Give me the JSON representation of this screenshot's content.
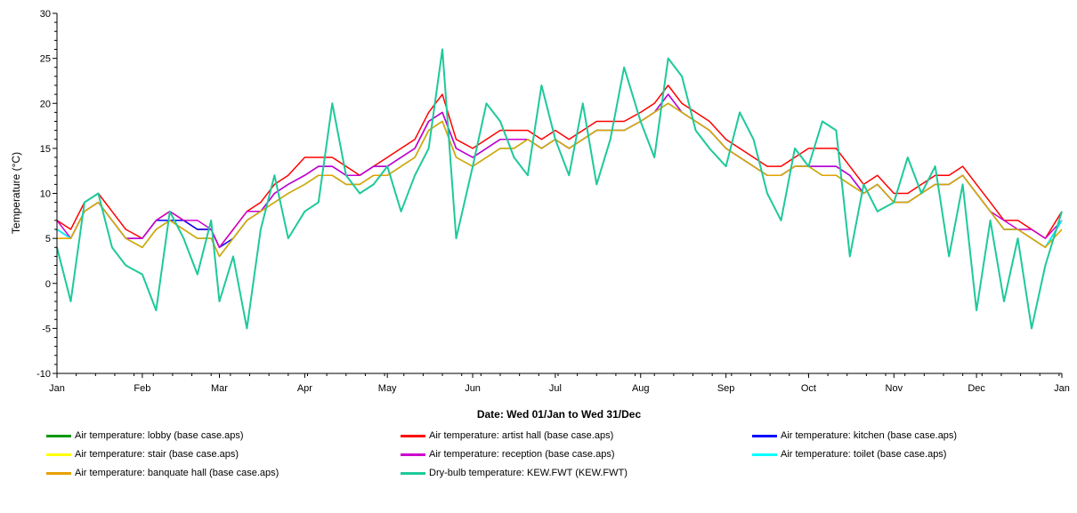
{
  "chart_data": {
    "type": "line",
    "title": "",
    "ylabel": "Temperature (°C)",
    "xlabel": "Date: Wed 01/Jan to Wed 31/Dec",
    "ylim": [
      -10,
      30
    ],
    "y_ticks": [
      -10,
      -5,
      0,
      5,
      10,
      15,
      20,
      25,
      30
    ],
    "x_range_days": [
      0,
      365
    ],
    "x_tick_days": [
      0,
      31,
      59,
      90,
      120,
      151,
      181,
      212,
      243,
      273,
      304,
      334,
      365
    ],
    "x_ticks": [
      "Jan",
      "Feb",
      "Mar",
      "Apr",
      "May",
      "Jun",
      "Jul",
      "Aug",
      "Sep",
      "Oct",
      "Nov",
      "Dec",
      "Jan"
    ],
    "grid": false,
    "legend_position": "bottom",
    "x_day_samples": [
      0,
      5,
      10,
      15,
      20,
      25,
      31,
      36,
      41,
      46,
      51,
      56,
      59,
      64,
      69,
      74,
      79,
      84,
      90,
      95,
      100,
      105,
      110,
      115,
      120,
      125,
      130,
      135,
      140,
      145,
      151,
      156,
      161,
      166,
      171,
      176,
      181,
      186,
      191,
      196,
      201,
      206,
      212,
      217,
      222,
      227,
      232,
      237,
      243,
      248,
      253,
      258,
      263,
      268,
      273,
      278,
      283,
      288,
      293,
      298,
      304,
      309,
      314,
      319,
      324,
      329,
      334,
      339,
      344,
      349,
      354,
      359,
      365
    ],
    "series": [
      {
        "name": "Air temperature: lobby  (base case.aps)",
        "color": "#009900",
        "values": [
          6,
          5,
          8,
          9,
          7,
          5,
          4,
          6,
          7,
          6,
          5,
          5,
          3,
          5,
          7,
          8,
          9,
          10,
          11,
          12,
          12,
          11,
          11,
          12,
          12,
          13,
          14,
          17,
          18,
          14,
          13,
          14,
          15,
          15,
          16,
          15,
          16,
          15,
          16,
          17,
          17,
          17,
          18,
          19,
          20,
          19,
          18,
          17,
          15,
          14,
          13,
          12,
          12,
          13,
          13,
          12,
          12,
          11,
          10,
          11,
          9,
          9,
          10,
          11,
          11,
          12,
          10,
          8,
          6,
          6,
          5,
          4,
          7
        ]
      },
      {
        "name": "Air temperature:  artist  hall  (base case.aps)",
        "color": "#ff0000",
        "values": [
          7,
          6,
          9,
          10,
          8,
          6,
          5,
          7,
          8,
          7,
          6,
          6,
          4,
          6,
          8,
          9,
          11,
          12,
          14,
          14,
          14,
          13,
          12,
          13,
          14,
          15,
          16,
          19,
          21,
          16,
          15,
          16,
          17,
          17,
          17,
          16,
          17,
          16,
          17,
          18,
          18,
          18,
          19,
          20,
          22,
          20,
          19,
          18,
          16,
          15,
          14,
          13,
          13,
          14,
          15,
          15,
          15,
          13,
          11,
          12,
          10,
          10,
          11,
          12,
          12,
          13,
          11,
          9,
          7,
          7,
          6,
          5,
          8
        ]
      },
      {
        "name": "Air temperature: kitchen  (base case.aps)",
        "color": "#0000ff",
        "values": [
          6,
          5,
          8,
          9,
          7,
          5,
          5,
          7,
          7,
          7,
          6,
          6,
          4,
          5,
          7,
          8,
          10,
          11,
          12,
          13,
          13,
          12,
          12,
          13,
          13,
          14,
          15,
          18,
          19,
          15,
          14,
          15,
          16,
          16,
          16,
          15,
          16,
          15,
          16,
          17,
          17,
          17,
          18,
          19,
          21,
          19,
          18,
          17,
          15,
          14,
          13,
          12,
          12,
          13,
          13,
          13,
          13,
          12,
          10,
          11,
          9,
          9,
          10,
          11,
          11,
          12,
          10,
          8,
          6,
          6,
          5,
          4,
          7
        ]
      },
      {
        "name": "Air temperature: stair  (base case.aps)",
        "color": "#ffff00",
        "values": [
          5,
          5,
          8,
          9,
          7,
          5,
          4,
          6,
          7,
          6,
          5,
          5,
          3,
          5,
          7,
          8,
          9,
          10,
          11,
          12,
          12,
          11,
          11,
          12,
          12,
          13,
          14,
          17,
          18,
          14,
          13,
          14,
          15,
          15,
          16,
          15,
          16,
          15,
          16,
          17,
          17,
          17,
          18,
          19,
          20,
          19,
          18,
          17,
          15,
          14,
          13,
          12,
          12,
          13,
          13,
          12,
          12,
          11,
          10,
          11,
          9,
          9,
          10,
          11,
          11,
          12,
          10,
          8,
          6,
          6,
          5,
          4,
          6
        ]
      },
      {
        "name": "Air temperature: reception  (base case.aps)",
        "color": "#cc00cc",
        "values": [
          7,
          5,
          8,
          9,
          7,
          5,
          5,
          7,
          8,
          7,
          7,
          6,
          4,
          6,
          8,
          8,
          10,
          11,
          12,
          13,
          13,
          12,
          12,
          13,
          13,
          14,
          15,
          18,
          19,
          15,
          14,
          15,
          16,
          16,
          16,
          15,
          16,
          15,
          16,
          17,
          17,
          17,
          18,
          19,
          21,
          19,
          18,
          17,
          15,
          14,
          13,
          12,
          12,
          13,
          13,
          13,
          13,
          12,
          10,
          11,
          9,
          9,
          10,
          11,
          11,
          12,
          10,
          8,
          7,
          6,
          6,
          5,
          7
        ]
      },
      {
        "name": "Air temperature: toilet  (base case.aps)",
        "color": "#00ffff",
        "values": [
          6,
          5,
          8,
          9,
          7,
          5,
          4,
          6,
          7,
          6,
          5,
          5,
          3,
          5,
          7,
          8,
          9,
          10,
          11,
          12,
          12,
          11,
          11,
          12,
          12,
          13,
          14,
          17,
          18,
          14,
          13,
          14,
          15,
          15,
          16,
          15,
          16,
          15,
          16,
          17,
          17,
          17,
          18,
          19,
          20,
          19,
          18,
          17,
          15,
          14,
          13,
          12,
          12,
          13,
          13,
          12,
          12,
          11,
          10,
          11,
          9,
          9,
          10,
          11,
          11,
          12,
          10,
          8,
          6,
          6,
          5,
          4,
          7
        ]
      },
      {
        "name": "Air temperature: banquate hall  (base case.aps)",
        "color": "#e6a000",
        "values": [
          5,
          5,
          8,
          9,
          7,
          5,
          4,
          6,
          7,
          6,
          5,
          5,
          3,
          5,
          7,
          8,
          9,
          10,
          11,
          12,
          12,
          11,
          11,
          12,
          12,
          13,
          14,
          17,
          18,
          14,
          13,
          14,
          15,
          15,
          16,
          15,
          16,
          15,
          16,
          17,
          17,
          17,
          18,
          19,
          20,
          19,
          18,
          17,
          15,
          14,
          13,
          12,
          12,
          13,
          13,
          12,
          12,
          11,
          10,
          11,
          9,
          9,
          10,
          11,
          11,
          12,
          10,
          8,
          6,
          6,
          5,
          4,
          6
        ]
      },
      {
        "name": "Dry-bulb temperature: KEW.FWT  (KEW.FWT)",
        "color": "#1ec99a",
        "values": [
          4,
          -2,
          9,
          10,
          4,
          2,
          1,
          -3,
          8,
          5,
          1,
          7,
          -2,
          3,
          -5,
          6,
          12,
          5,
          8,
          9,
          20,
          12,
          10,
          11,
          13,
          8,
          12,
          15,
          26,
          5,
          13,
          20,
          18,
          14,
          12,
          22,
          16,
          12,
          20,
          11,
          16,
          24,
          18,
          14,
          25,
          23,
          17,
          15,
          13,
          19,
          16,
          10,
          7,
          15,
          13,
          18,
          17,
          3,
          11,
          8,
          9,
          14,
          10,
          13,
          3,
          11,
          -3,
          7,
          -2,
          5,
          -5,
          2,
          8
        ]
      }
    ]
  }
}
